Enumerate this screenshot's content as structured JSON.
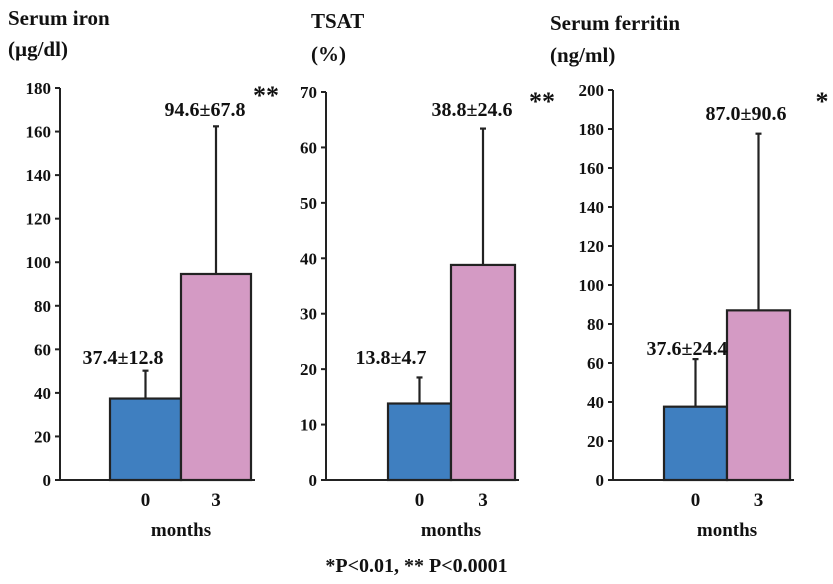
{
  "footnote": "*P<0.01, ** P<0.0001",
  "colors": {
    "month0": "#3f7fc0",
    "month3": "#d49ac4",
    "axis": "#222222"
  },
  "chart_data": [
    {
      "type": "bar",
      "title_lines": [
        "Serum iron",
        "(µg/dl)"
      ],
      "xlabel": "months",
      "categories": [
        "0",
        "3"
      ],
      "values": [
        37.4,
        94.6
      ],
      "sd": [
        12.8,
        67.8
      ],
      "value_labels": [
        "37.4±12.8",
        "94.6±67.8"
      ],
      "significance": [
        "",
        "**"
      ],
      "ylim": [
        0,
        180
      ],
      "yticks": [
        0,
        20,
        40,
        60,
        80,
        100,
        120,
        140,
        160,
        180
      ],
      "grid": false
    },
    {
      "type": "bar",
      "title_lines": [
        "TSAT",
        "(%)"
      ],
      "xlabel": "months",
      "categories": [
        "0",
        "3"
      ],
      "values": [
        13.8,
        38.8
      ],
      "sd": [
        4.7,
        24.6
      ],
      "value_labels": [
        "13.8±4.7",
        "38.8±24.6"
      ],
      "significance": [
        "",
        "**"
      ],
      "ylim": [
        0,
        70
      ],
      "yticks": [
        0,
        10,
        20,
        30,
        40,
        50,
        60,
        70
      ],
      "grid": false
    },
    {
      "type": "bar",
      "title_lines": [
        "Serum ferritin",
        "(ng/ml)"
      ],
      "xlabel": "months",
      "categories": [
        "0",
        "3"
      ],
      "values": [
        37.6,
        87.0
      ],
      "sd": [
        24.4,
        90.6
      ],
      "value_labels": [
        "37.6±24.4",
        "87.0±90.6"
      ],
      "significance": [
        "",
        "*"
      ],
      "ylim": [
        0,
        200
      ],
      "yticks": [
        0,
        20,
        40,
        60,
        80,
        100,
        120,
        140,
        160,
        180,
        200
      ],
      "grid": false
    }
  ]
}
